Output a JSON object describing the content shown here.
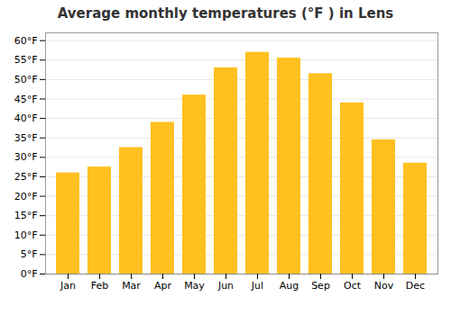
{
  "chart_data": {
    "type": "bar",
    "title": "Average monthly temperatures (°F ) in Lens",
    "categories": [
      "Jan",
      "Feb",
      "Mar",
      "Apr",
      "May",
      "Jun",
      "Jul",
      "Aug",
      "Sep",
      "Oct",
      "Nov",
      "Dec"
    ],
    "values": [
      26.0,
      27.5,
      32.5,
      39.0,
      46.0,
      53.0,
      57.0,
      55.5,
      51.5,
      44.0,
      34.5,
      28.5
    ],
    "color": "#FFC020",
    "ylim": [
      0,
      62
    ],
    "yticks": [
      {
        "value": 0,
        "label": "0°F"
      },
      {
        "value": 5,
        "label": "5°F"
      },
      {
        "value": 10,
        "label": "10°F"
      },
      {
        "value": 15,
        "label": "15°F"
      },
      {
        "value": 20,
        "label": "20°F"
      },
      {
        "value": 25,
        "label": "25°F"
      },
      {
        "value": 30,
        "label": "30°F"
      },
      {
        "value": 35,
        "label": "35°F"
      },
      {
        "value": 40,
        "label": "40°F"
      },
      {
        "value": 45,
        "label": "45°F"
      },
      {
        "value": 50,
        "label": "50°F"
      },
      {
        "value": 55,
        "label": "55°F"
      },
      {
        "value": 60,
        "label": "60°F"
      }
    ],
    "grid": true
  }
}
